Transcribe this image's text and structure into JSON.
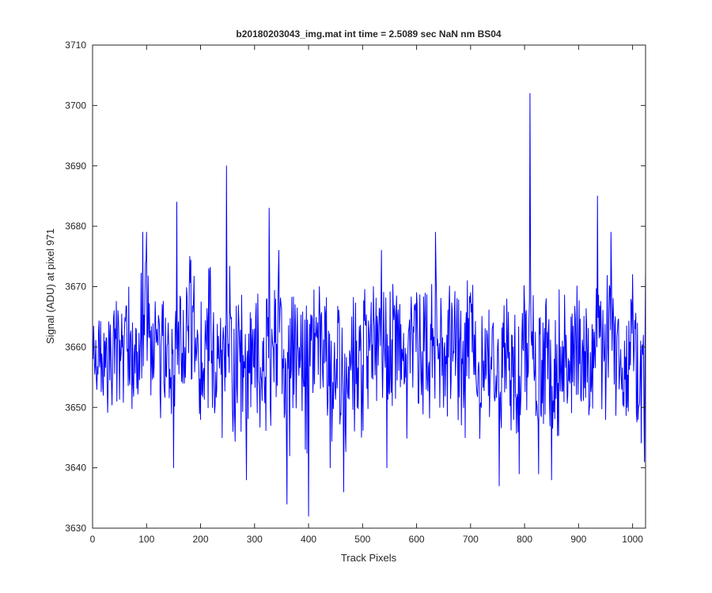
{
  "chart_data": {
    "type": "line",
    "title": "b20180203043_img.mat int time = 2.5089 sec  NaN nm BS04",
    "xlabel": "Track Pixels",
    "ylabel": "Signal (ADU) at pixel 971",
    "xlim": [
      0,
      1024
    ],
    "ylim": [
      3630,
      3710
    ],
    "xticks": [
      "0",
      "100",
      "200",
      "300",
      "400",
      "500",
      "600",
      "700",
      "800",
      "900",
      "1000"
    ],
    "yticks": [
      "3630",
      "3640",
      "3650",
      "3660",
      "3670",
      "3680",
      "3690",
      "3700",
      "3710"
    ],
    "grid": false,
    "series": [
      {
        "color": "#0000ff",
        "summary": {
          "mean": 3659,
          "min": 3632,
          "max": 3702,
          "n_points": 1024
        },
        "x": [
          1,
          20,
          40,
          55,
          70,
          85,
          93,
          96,
          100,
          120,
          140,
          150,
          156,
          170,
          180,
          200,
          215,
          230,
          240,
          244,
          248,
          260,
          280,
          285,
          300,
          320,
          327,
          330,
          345,
          360,
          375,
          390,
          400,
          420,
          440,
          455,
          465,
          480,
          490,
          500,
          520,
          535,
          545,
          560,
          580,
          600,
          620,
          635,
          640,
          650,
          670,
          690,
          700,
          720,
          740,
          753,
          760,
          780,
          790,
          800,
          806,
          810,
          815,
          826,
          840,
          850,
          870,
          880,
          900,
          920,
          930,
          935,
          950,
          960,
          970,
          990,
          1000,
          1010,
          1022,
          1024
        ],
        "values": [
          3658,
          3652,
          3666,
          3660,
          3662,
          3655,
          3679,
          3662,
          3679,
          3661,
          3664,
          3640,
          3684,
          3654,
          3675,
          3648,
          3673,
          3653,
          3645,
          3658,
          3690,
          3646,
          3655,
          3638,
          3663,
          3655,
          3683,
          3647,
          3676,
          3634,
          3667,
          3655,
          3632,
          3670,
          3640,
          3664,
          3636,
          3665,
          3650,
          3657,
          3670,
          3676,
          3640,
          3665,
          3655,
          3669,
          3655,
          3679,
          3658,
          3650,
          3665,
          3645,
          3669,
          3650,
          3663,
          3637,
          3664,
          3648,
          3639,
          3667,
          3655,
          3702,
          3658,
          3639,
          3668,
          3638,
          3661,
          3652,
          3658,
          3650,
          3659,
          3685,
          3648,
          3679,
          3655,
          3650,
          3672,
          3648,
          3641,
          3673
        ]
      }
    ]
  }
}
